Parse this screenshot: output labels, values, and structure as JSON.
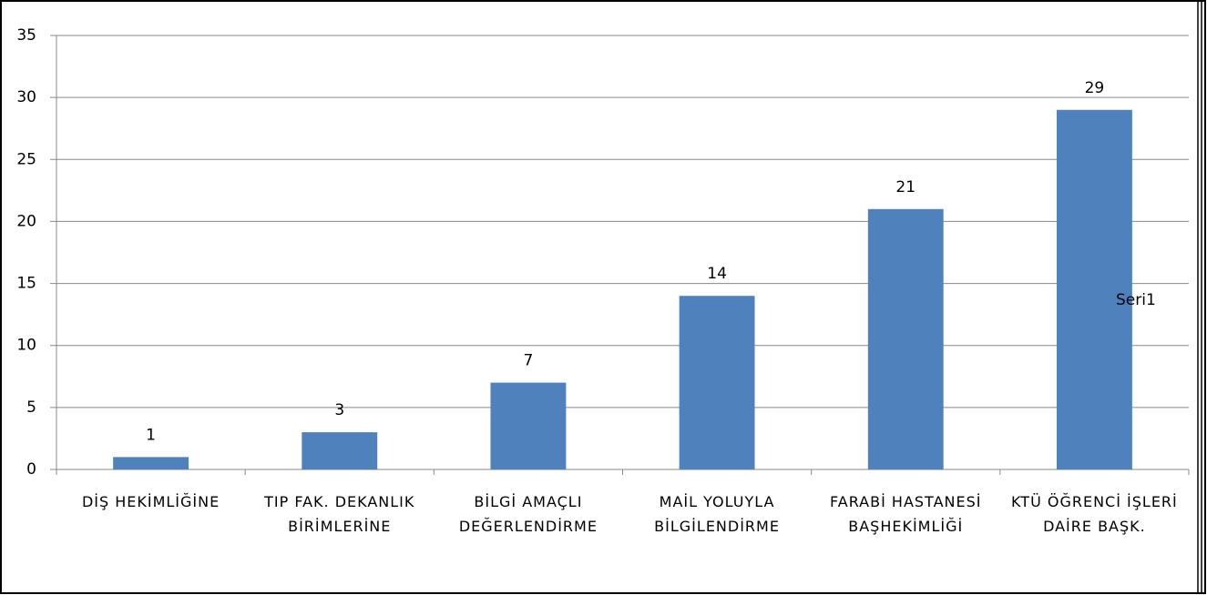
{
  "chart_data": {
    "type": "bar",
    "categories": [
      "DİŞ HEKİMLİĞİNE",
      "TIP FAK. DEKANLIK BİRİMLERİNE",
      "BİLGİ AMAÇLI DEĞERLENDİRME",
      "MAİL YOLUYLA BİLGİLENDİRME",
      "FARABİ HASTANESİ BAŞHEKİMLİĞİ",
      "KTÜ ÖĞRENCİ İŞLERİ DAİRE BAŞK."
    ],
    "series": [
      {
        "name": "Seri1",
        "color": "#4f81bd",
        "values": [
          1,
          3,
          7,
          14,
          21,
          29
        ]
      }
    ],
    "ylim": [
      0,
      35
    ],
    "yticks": [
      0,
      5,
      10,
      15,
      20,
      25,
      30,
      35
    ],
    "grid": true
  }
}
